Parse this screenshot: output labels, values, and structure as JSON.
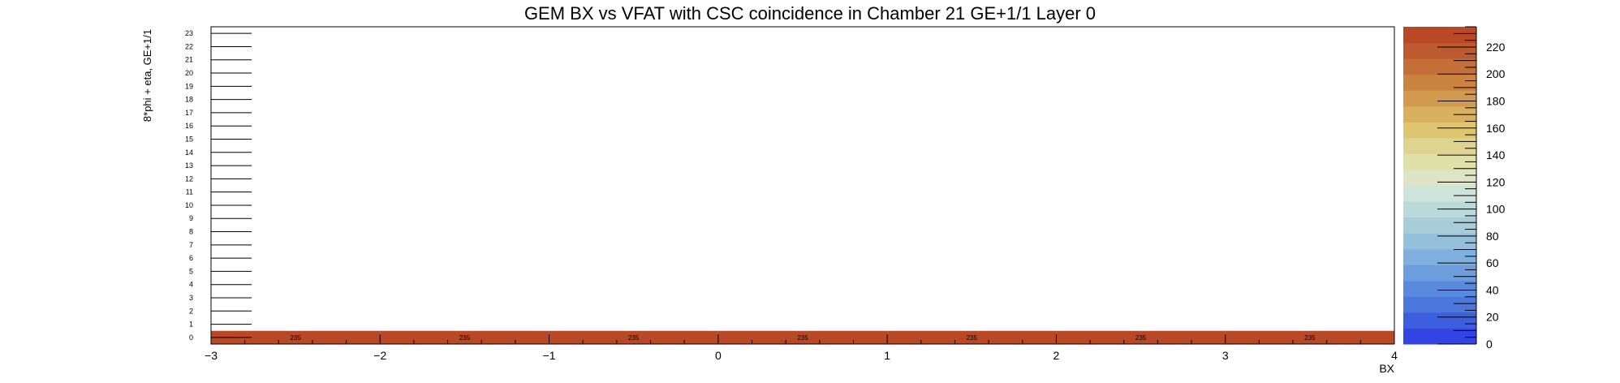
{
  "chart_data": {
    "type": "heatmap",
    "title": "GEM BX vs VFAT with CSC coincidence in Chamber 21 GE+1/1 Layer 0",
    "xlabel": "BX",
    "ylabel": "8*phi + eta, GE+1/1",
    "xlim": [
      -3,
      4
    ],
    "ylim": [
      0,
      24
    ],
    "x_ticks": [
      "−3",
      "−2",
      "−1",
      "0",
      "1",
      "2",
      "3",
      "4"
    ],
    "y_ticks": [
      "0",
      "1",
      "2",
      "3",
      "4",
      "5",
      "6",
      "7",
      "8",
      "9",
      "10",
      "11",
      "12",
      "13",
      "14",
      "15",
      "16",
      "17",
      "18",
      "19",
      "20",
      "21",
      "22",
      "23"
    ],
    "cells": [
      {
        "x": -3,
        "y": 0,
        "value": 235,
        "label": "235"
      },
      {
        "x": -2,
        "y": 0,
        "value": 235,
        "label": "235"
      },
      {
        "x": -1,
        "y": 0,
        "value": 235,
        "label": "235"
      },
      {
        "x": 0,
        "y": 0,
        "value": 235,
        "label": "235"
      },
      {
        "x": 1,
        "y": 0,
        "value": 235,
        "label": "235"
      },
      {
        "x": 2,
        "y": 0,
        "value": 235,
        "label": "235"
      },
      {
        "x": 3,
        "y": 0,
        "value": 235,
        "label": "235"
      }
    ],
    "zlim": [
      0,
      235
    ],
    "colorbar_ticks": [
      "0",
      "20",
      "40",
      "60",
      "80",
      "100",
      "120",
      "140",
      "160",
      "180",
      "200",
      "220"
    ],
    "colorbar_colors": [
      "#3244e4",
      "#3d5fdf",
      "#4c78dc",
      "#5a8adb",
      "#6c9ddc",
      "#80b0dd",
      "#94c0dc",
      "#a7ced8",
      "#bbd9d8",
      "#cee3da",
      "#dce6c7",
      "#e0e1a8",
      "#dfd48f",
      "#ddc66f",
      "#d8b15f",
      "#d19a4e",
      "#ca8440",
      "#c46f37",
      "#bd5a2f",
      "#b84826"
    ],
    "grid": false
  }
}
